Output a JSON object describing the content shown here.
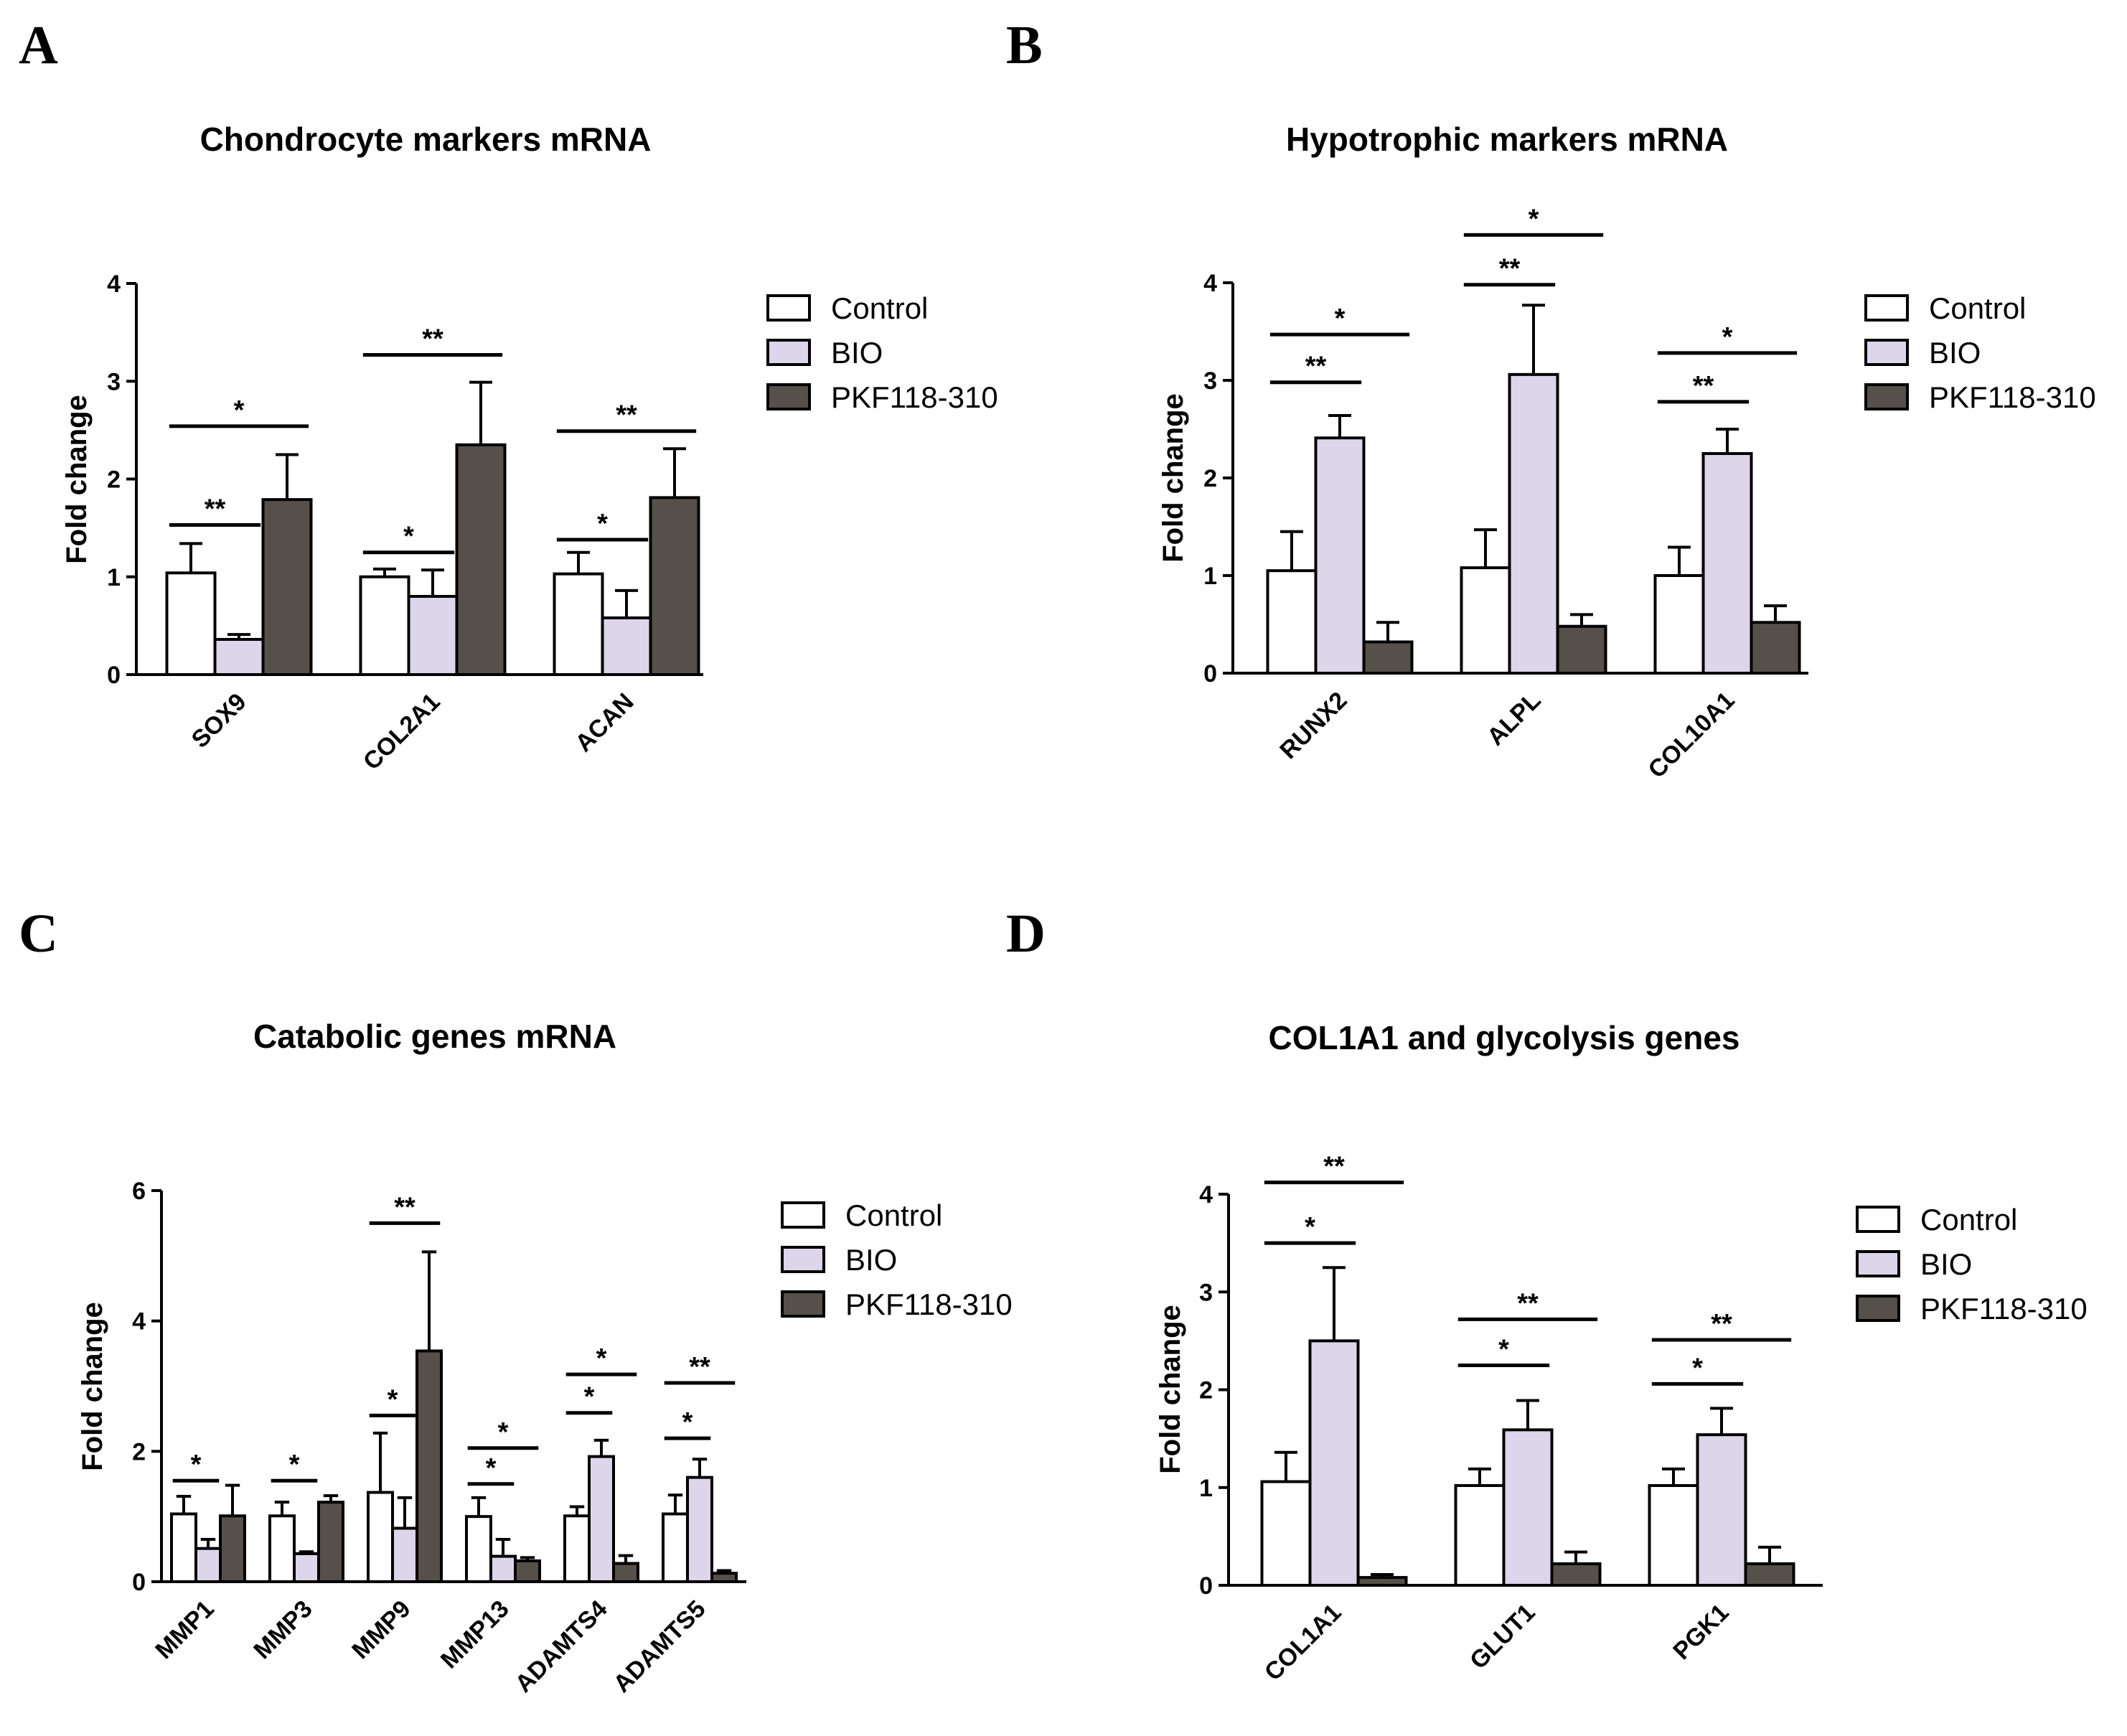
{
  "colors": {
    "Control": "#ffffff",
    "BIO": "#ddd6ea",
    "PKF118-310": "#555049",
    "stroke": "#000000"
  },
  "legend_labels": [
    "Control",
    "BIO",
    "PKF118-310"
  ],
  "chart_data": [
    {
      "panel": "A",
      "type": "bar",
      "title": "Chondrocyte markers mRNA",
      "ylabel": "Fold change",
      "ylim": [
        0,
        4
      ],
      "yticks": [
        "0",
        "1",
        "2",
        "3",
        "4"
      ],
      "categories": [
        "SOX9",
        "COL2A1",
        "ACAN"
      ],
      "series": [
        {
          "name": "Control",
          "values": [
            1.04,
            1.0,
            1.03
          ],
          "errors": [
            0.3,
            0.08,
            0.22
          ]
        },
        {
          "name": "BIO",
          "values": [
            0.36,
            0.8,
            0.58
          ],
          "errors": [
            0.05,
            0.27,
            0.28
          ]
        },
        {
          "name": "PKF118-310",
          "values": [
            1.79,
            2.35,
            1.81
          ],
          "errors": [
            0.46,
            0.64,
            0.5
          ]
        }
      ],
      "significance": [
        {
          "category": 0,
          "from": 0,
          "to": 1,
          "label": "**",
          "y": 1.53
        },
        {
          "category": 0,
          "from": 0,
          "to": 2,
          "label": "*",
          "y": 2.54
        },
        {
          "category": 1,
          "from": 0,
          "to": 1,
          "label": "*",
          "y": 1.25
        },
        {
          "category": 1,
          "from": 0,
          "to": 2,
          "label": "**",
          "y": 3.27
        },
        {
          "category": 2,
          "from": 0,
          "to": 1,
          "label": "*",
          "y": 1.38
        },
        {
          "category": 2,
          "from": 0,
          "to": 2,
          "label": "**",
          "y": 2.49
        }
      ]
    },
    {
      "panel": "B",
      "type": "bar",
      "title": "Hypotrophic markers mRNA",
      "ylabel": "Fold change",
      "ylim": [
        0,
        4
      ],
      "yticks": [
        "0",
        "1",
        "2",
        "3",
        "4"
      ],
      "categories": [
        "RUNX2",
        "ALPL",
        "COL10A1"
      ],
      "series": [
        {
          "name": "Control",
          "values": [
            1.05,
            1.08,
            1.0
          ],
          "errors": [
            0.4,
            0.39,
            0.29
          ]
        },
        {
          "name": "BIO",
          "values": [
            2.41,
            3.06,
            2.25
          ],
          "errors": [
            0.23,
            0.71,
            0.25
          ]
        },
        {
          "name": "PKF118-310",
          "values": [
            0.32,
            0.48,
            0.52
          ],
          "errors": [
            0.2,
            0.12,
            0.17
          ]
        }
      ],
      "significance": [
        {
          "category": 0,
          "from": 0,
          "to": 1,
          "label": "**",
          "y": 2.98
        },
        {
          "category": 0,
          "from": 0,
          "to": 2,
          "label": "*",
          "y": 3.47
        },
        {
          "category": 1,
          "from": 0,
          "to": 1,
          "label": "**",
          "y": 3.98
        },
        {
          "category": 1,
          "from": 0,
          "to": 2,
          "label": "*",
          "y": 4.49
        },
        {
          "category": 2,
          "from": 0,
          "to": 1,
          "label": "**",
          "y": 2.78
        },
        {
          "category": 2,
          "from": 0,
          "to": 2,
          "label": "*",
          "y": 3.28
        }
      ]
    },
    {
      "panel": "C",
      "type": "bar",
      "title": "Catabolic genes mRNA",
      "ylabel": "Fold change",
      "ylim": [
        0,
        6
      ],
      "yticks": [
        "0",
        "2",
        "4",
        "6"
      ],
      "categories": [
        "MMP1",
        "MMP3",
        "MMP9",
        "MMP13",
        "ADAMTS4",
        "ADAMTS5"
      ],
      "series": [
        {
          "name": "Control",
          "values": [
            1.04,
            1.01,
            1.37,
            1.0,
            1.01,
            1.04
          ],
          "errors": [
            0.27,
            0.21,
            0.91,
            0.29,
            0.14,
            0.29
          ]
        },
        {
          "name": "BIO",
          "values": [
            0.51,
            0.43,
            0.82,
            0.39,
            1.92,
            1.6
          ],
          "errors": [
            0.14,
            0.03,
            0.47,
            0.26,
            0.25,
            0.28
          ]
        },
        {
          "name": "PKF118-310",
          "values": [
            1.01,
            1.22,
            3.54,
            0.32,
            0.28,
            0.13
          ],
          "errors": [
            0.47,
            0.1,
            1.52,
            0.05,
            0.12,
            0.04
          ]
        }
      ],
      "significance": [
        {
          "category": 0,
          "from": 0,
          "to": 1,
          "label": "*",
          "y": 1.55
        },
        {
          "category": 1,
          "from": 0,
          "to": 1,
          "label": "*",
          "y": 1.55
        },
        {
          "category": 2,
          "from": 0,
          "to": 1,
          "label": "*",
          "y": 2.55
        },
        {
          "category": 2,
          "from": 0,
          "to": 2,
          "label": "**",
          "y": 5.5
        },
        {
          "category": 3,
          "from": 0,
          "to": 1,
          "label": "*",
          "y": 1.5
        },
        {
          "category": 3,
          "from": 0,
          "to": 2,
          "label": "*",
          "y": 2.05
        },
        {
          "category": 4,
          "from": 0,
          "to": 1,
          "label": "*",
          "y": 2.59
        },
        {
          "category": 4,
          "from": 0,
          "to": 2,
          "label": "*",
          "y": 3.18
        },
        {
          "category": 5,
          "from": 0,
          "to": 1,
          "label": "*",
          "y": 2.2
        },
        {
          "category": 5,
          "from": 0,
          "to": 2,
          "label": "**",
          "y": 3.05
        }
      ]
    },
    {
      "panel": "D",
      "type": "bar",
      "title": "COL1A1 and glycolysis genes",
      "ylabel": "Fold change",
      "ylim": [
        0,
        4
      ],
      "yticks": [
        "0",
        "1",
        "2",
        "3",
        "4"
      ],
      "categories": [
        "COL1A1",
        "GLUT1",
        "PGK1"
      ],
      "series": [
        {
          "name": "Control",
          "values": [
            1.06,
            1.02,
            1.02
          ],
          "errors": [
            0.3,
            0.17,
            0.17
          ]
        },
        {
          "name": "BIO",
          "values": [
            2.5,
            1.59,
            1.54
          ],
          "errors": [
            0.75,
            0.3,
            0.27
          ]
        },
        {
          "name": "PKF118-310",
          "values": [
            0.08,
            0.22,
            0.22
          ],
          "errors": [
            0.03,
            0.12,
            0.17
          ]
        }
      ],
      "significance": [
        {
          "category": 0,
          "from": 0,
          "to": 1,
          "label": "*",
          "y": 3.5
        },
        {
          "category": 0,
          "from": 0,
          "to": 2,
          "label": "**",
          "y": 4.12
        },
        {
          "category": 1,
          "from": 0,
          "to": 1,
          "label": "*",
          "y": 2.25
        },
        {
          "category": 1,
          "from": 0,
          "to": 2,
          "label": "**",
          "y": 2.72
        },
        {
          "category": 2,
          "from": 0,
          "to": 1,
          "label": "*",
          "y": 2.06
        },
        {
          "category": 2,
          "from": 0,
          "to": 2,
          "label": "**",
          "y": 2.51
        }
      ]
    }
  ]
}
